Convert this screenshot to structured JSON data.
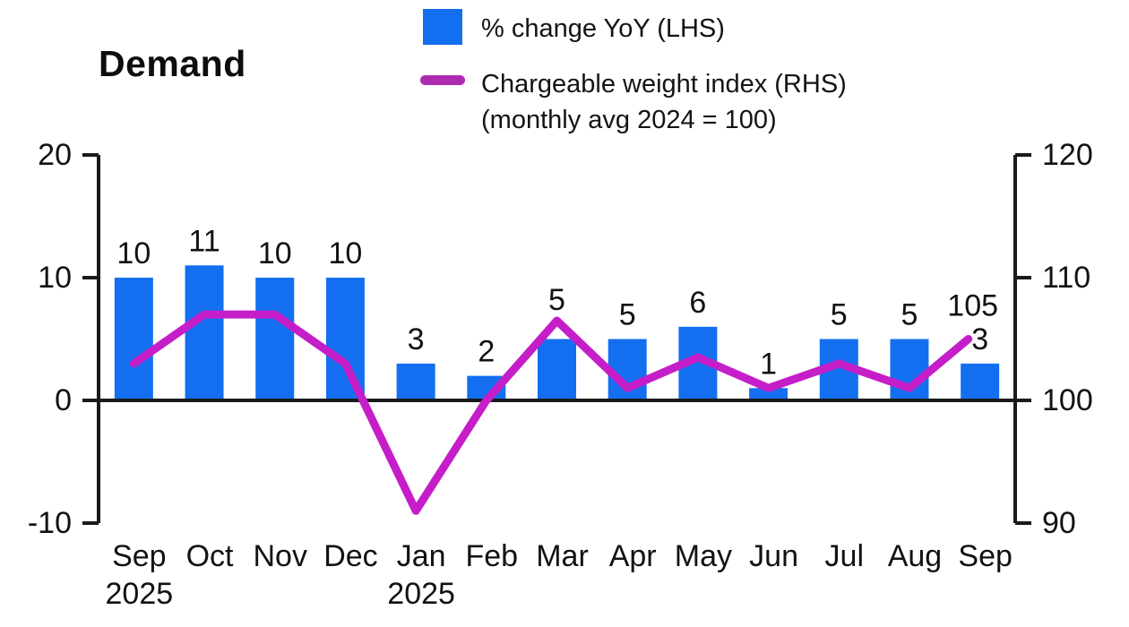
{
  "title": "Demand",
  "legend": {
    "bar_label": "% change YoY (LHS)",
    "line_label": "Chargeable weight index (RHS)",
    "line_sublabel": "(monthly avg 2024 = 100)"
  },
  "colors": {
    "bar": "#146ff0",
    "line": "#c51ec9",
    "line_swatch": "#ad2bb1",
    "axis": "#1a1a1a",
    "text": "#121212"
  },
  "chart_data": {
    "type": "bar+line combo",
    "title": "Demand",
    "categories": [
      "Sep",
      "Oct",
      "Nov",
      "Dec",
      "Jan",
      "Feb",
      "Mar",
      "Apr",
      "May",
      "Jun",
      "Jul",
      "Aug",
      "Sep"
    ],
    "year_labels": [
      {
        "index": 0,
        "text": "2025"
      },
      {
        "index": 4,
        "text": "2025"
      }
    ],
    "left_axis": {
      "ticks": [
        "20",
        "10",
        "0",
        "-10"
      ],
      "tick_values": [
        20,
        10,
        0,
        -10
      ],
      "min": -10,
      "max": 20
    },
    "right_axis": {
      "ticks": [
        "120",
        "110",
        "100",
        "90"
      ],
      "tick_values": [
        120,
        110,
        100,
        90
      ],
      "min": 90,
      "max": 120
    },
    "grid": false,
    "legend_position": "top",
    "series": [
      {
        "name": "% change YoY (LHS)",
        "type": "bar",
        "axis": "left",
        "values": [
          10,
          11,
          10,
          10,
          3,
          2,
          5,
          5,
          6,
          1,
          5,
          5,
          3
        ],
        "data_labels": [
          "10",
          "11",
          "10",
          "10",
          "3",
          "2",
          "5",
          "5",
          "6",
          "1",
          "5",
          "5",
          "3"
        ]
      },
      {
        "name": "Chargeable weight index (RHS) (monthly avg 2024 = 100)",
        "type": "line",
        "axis": "right",
        "values": [
          103,
          107,
          107,
          103,
          91,
          100,
          106.5,
          101,
          103.5,
          101,
          103,
          101,
          105
        ],
        "end_label": "105"
      }
    ]
  }
}
